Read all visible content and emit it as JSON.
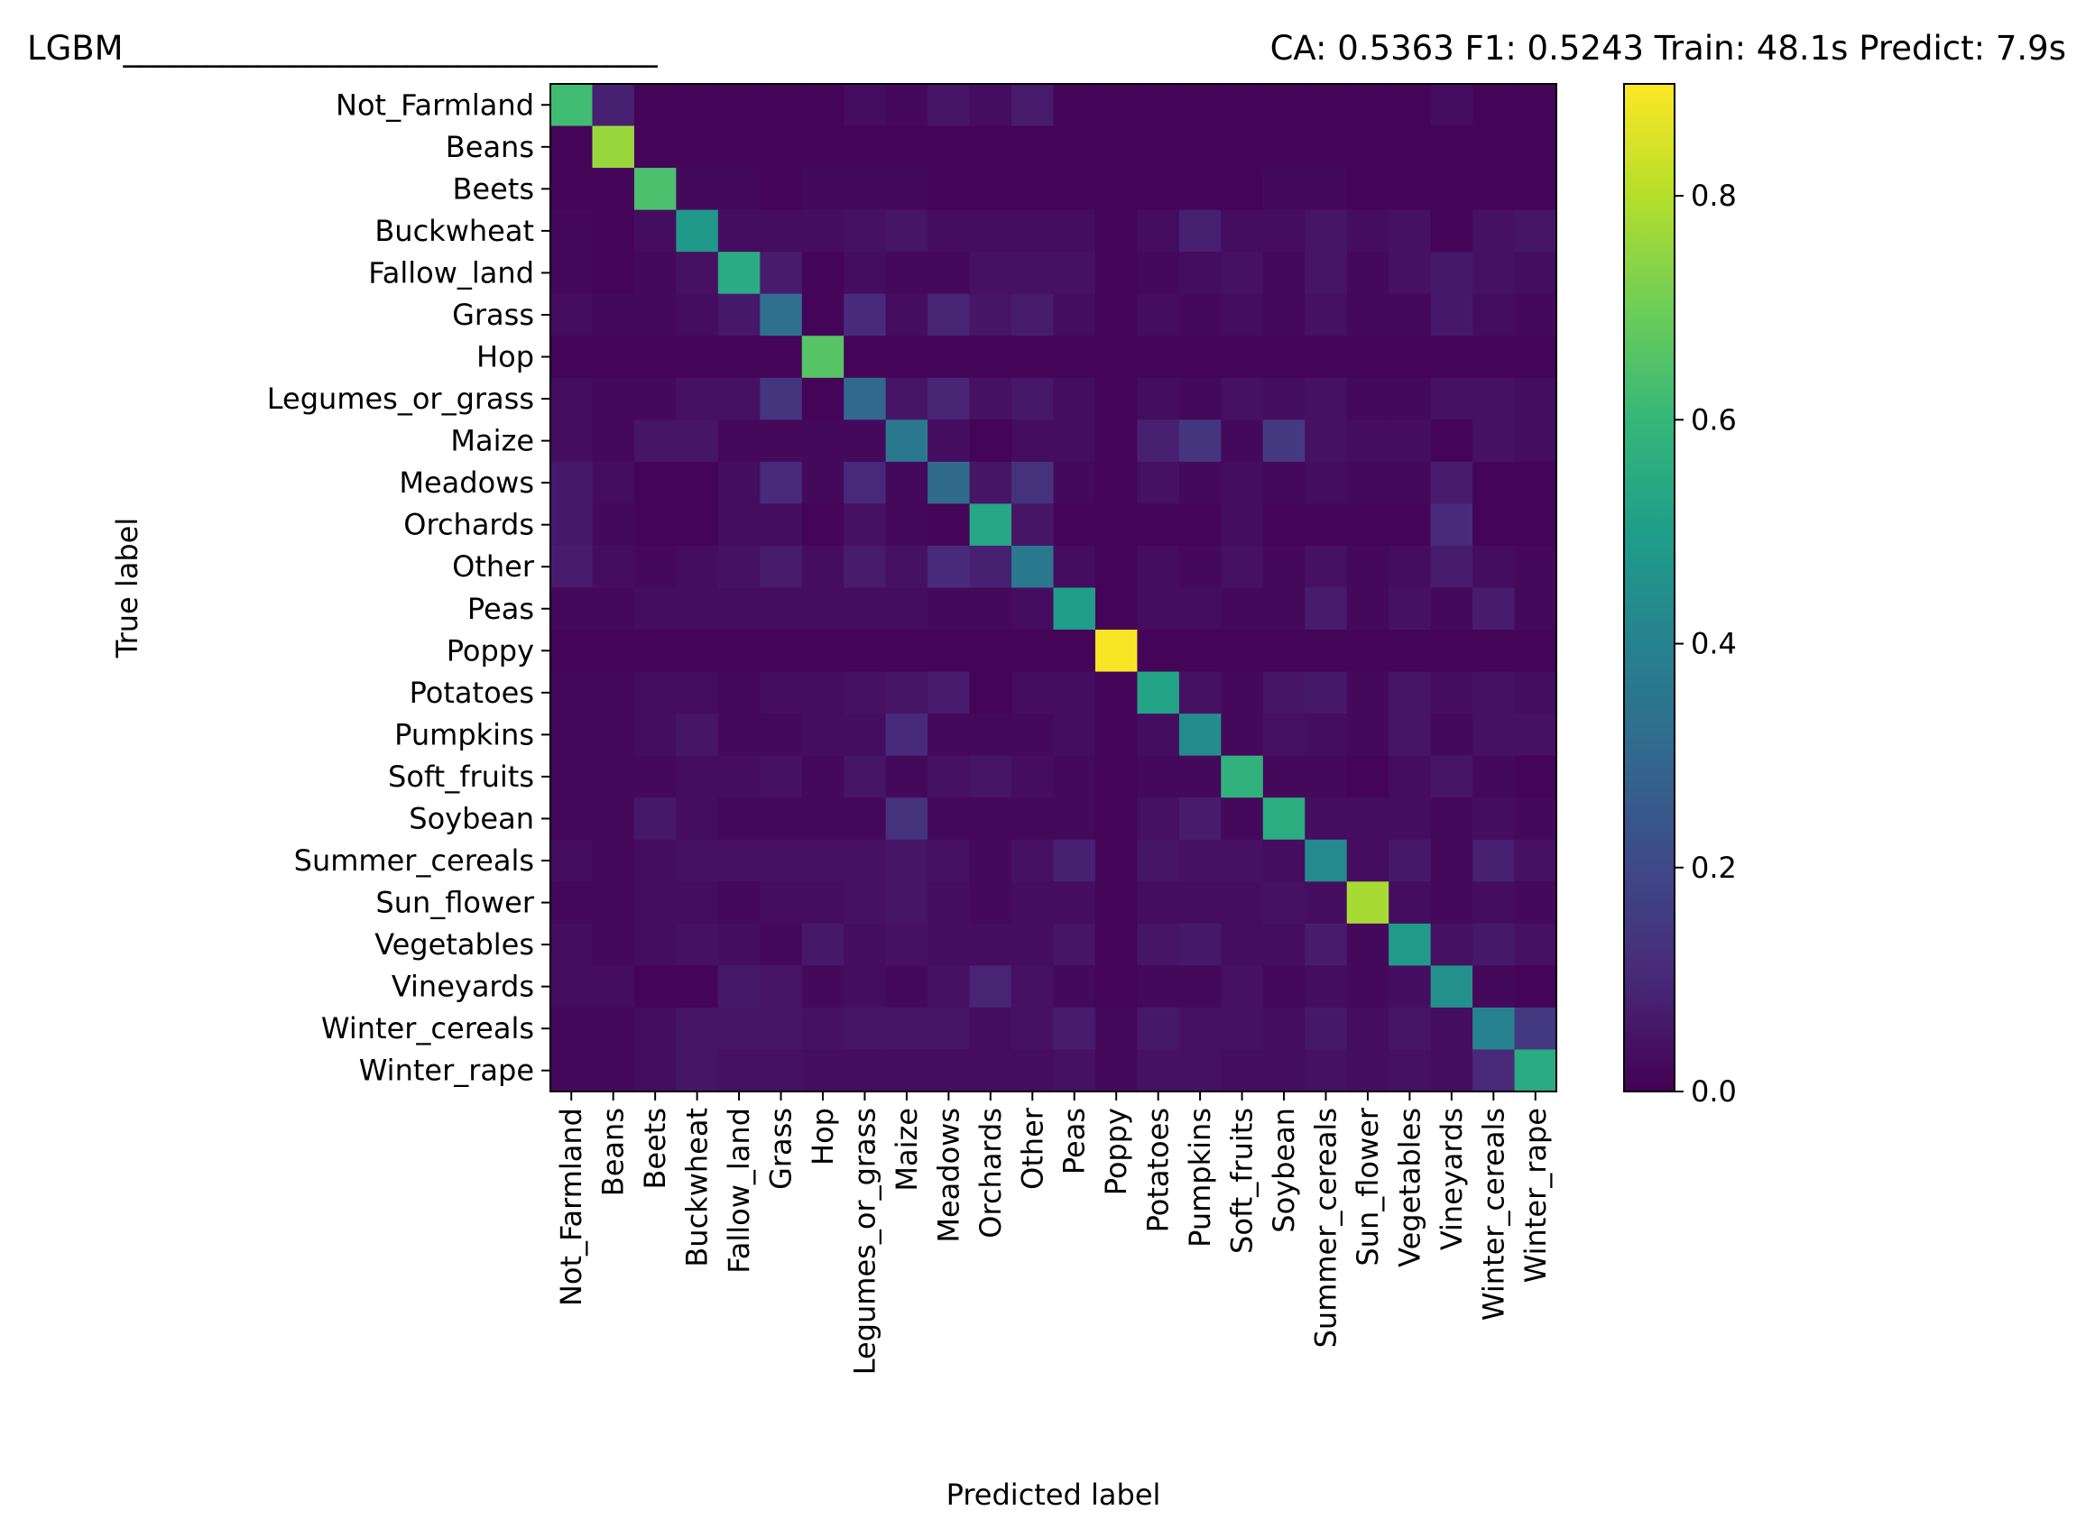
{
  "chart_data": {
    "type": "heatmap",
    "title_left": "LGBM________________________________",
    "title_right": "CA: 0.5363 F1: 0.5243 Train: 48.1s Predict: 7.9s",
    "xlabel": "Predicted label",
    "ylabel": "True label",
    "colormap": "viridis",
    "vmin": 0.0,
    "vmax": 0.9,
    "colorbar_ticks": [
      "0.0",
      "0.2",
      "0.4",
      "0.6",
      "0.8"
    ],
    "colorbar_tick_values": [
      0.0,
      0.2,
      0.4,
      0.6,
      0.8
    ],
    "labels": [
      "Not_Farmland",
      "Beans",
      "Beets",
      "Buckwheat",
      "Fallow_land",
      "Grass",
      "Hop",
      "Legumes_or_grass",
      "Maize",
      "Meadows",
      "Orchards",
      "Other",
      "Peas",
      "Poppy",
      "Potatoes",
      "Pumpkins",
      "Soft_fruits",
      "Soybean",
      "Summer_cereals",
      "Sun_flower",
      "Vegetables",
      "Vineyards",
      "Winter_cereals",
      "Winter_rape"
    ],
    "matrix": [
      [
        0.62,
        0.08,
        0.01,
        0.01,
        0.01,
        0.01,
        0.01,
        0.03,
        0.02,
        0.05,
        0.03,
        0.07,
        0.01,
        0.01,
        0.01,
        0.01,
        0.01,
        0.01,
        0.01,
        0.01,
        0.01,
        0.03,
        0.01,
        0.01
      ],
      [
        0.01,
        0.76,
        0.01,
        0.01,
        0.01,
        0.01,
        0.01,
        0.01,
        0.01,
        0.01,
        0.01,
        0.01,
        0.01,
        0.01,
        0.01,
        0.01,
        0.01,
        0.01,
        0.01,
        0.01,
        0.01,
        0.01,
        0.01,
        0.01
      ],
      [
        0.01,
        0.01,
        0.64,
        0.02,
        0.02,
        0.01,
        0.02,
        0.02,
        0.02,
        0.01,
        0.01,
        0.01,
        0.01,
        0.01,
        0.01,
        0.01,
        0.01,
        0.02,
        0.02,
        0.01,
        0.01,
        0.01,
        0.01,
        0.01
      ],
      [
        0.02,
        0.01,
        0.03,
        0.48,
        0.03,
        0.03,
        0.03,
        0.04,
        0.05,
        0.03,
        0.03,
        0.03,
        0.03,
        0.01,
        0.03,
        0.08,
        0.03,
        0.03,
        0.05,
        0.03,
        0.04,
        0.01,
        0.04,
        0.05
      ],
      [
        0.02,
        0.01,
        0.02,
        0.04,
        0.55,
        0.07,
        0.01,
        0.03,
        0.02,
        0.02,
        0.04,
        0.04,
        0.04,
        0.01,
        0.02,
        0.03,
        0.04,
        0.02,
        0.05,
        0.02,
        0.04,
        0.06,
        0.04,
        0.03
      ],
      [
        0.03,
        0.02,
        0.02,
        0.03,
        0.06,
        0.33,
        0.01,
        0.11,
        0.03,
        0.09,
        0.05,
        0.07,
        0.03,
        0.01,
        0.03,
        0.02,
        0.03,
        0.02,
        0.04,
        0.02,
        0.02,
        0.06,
        0.03,
        0.02
      ],
      [
        0.01,
        0.01,
        0.01,
        0.01,
        0.01,
        0.01,
        0.66,
        0.01,
        0.01,
        0.01,
        0.01,
        0.01,
        0.01,
        0.01,
        0.01,
        0.01,
        0.01,
        0.01,
        0.01,
        0.01,
        0.01,
        0.01,
        0.01,
        0.01
      ],
      [
        0.03,
        0.02,
        0.02,
        0.04,
        0.04,
        0.14,
        0.01,
        0.3,
        0.05,
        0.09,
        0.04,
        0.06,
        0.03,
        0.01,
        0.03,
        0.02,
        0.04,
        0.03,
        0.04,
        0.02,
        0.02,
        0.04,
        0.04,
        0.03
      ],
      [
        0.03,
        0.02,
        0.05,
        0.05,
        0.02,
        0.02,
        0.02,
        0.02,
        0.36,
        0.03,
        0.01,
        0.03,
        0.03,
        0.01,
        0.08,
        0.14,
        0.02,
        0.15,
        0.04,
        0.03,
        0.03,
        0.01,
        0.04,
        0.03
      ],
      [
        0.06,
        0.03,
        0.01,
        0.01,
        0.03,
        0.11,
        0.02,
        0.1,
        0.02,
        0.31,
        0.05,
        0.13,
        0.02,
        0.01,
        0.04,
        0.02,
        0.03,
        0.02,
        0.03,
        0.02,
        0.02,
        0.07,
        0.01,
        0.01
      ],
      [
        0.06,
        0.02,
        0.01,
        0.01,
        0.03,
        0.03,
        0.01,
        0.04,
        0.02,
        0.01,
        0.53,
        0.05,
        0.01,
        0.01,
        0.01,
        0.01,
        0.03,
        0.01,
        0.01,
        0.01,
        0.01,
        0.11,
        0.01,
        0.01
      ],
      [
        0.07,
        0.03,
        0.02,
        0.03,
        0.04,
        0.07,
        0.03,
        0.07,
        0.04,
        0.11,
        0.08,
        0.36,
        0.03,
        0.01,
        0.03,
        0.02,
        0.04,
        0.02,
        0.04,
        0.02,
        0.03,
        0.07,
        0.03,
        0.02
      ],
      [
        0.02,
        0.02,
        0.03,
        0.03,
        0.03,
        0.03,
        0.03,
        0.03,
        0.03,
        0.02,
        0.02,
        0.03,
        0.5,
        0.01,
        0.03,
        0.03,
        0.02,
        0.02,
        0.07,
        0.02,
        0.04,
        0.02,
        0.07,
        0.02
      ],
      [
        0.01,
        0.01,
        0.01,
        0.01,
        0.01,
        0.01,
        0.01,
        0.01,
        0.01,
        0.01,
        0.01,
        0.01,
        0.01,
        0.89,
        0.01,
        0.01,
        0.01,
        0.01,
        0.01,
        0.01,
        0.01,
        0.01,
        0.01,
        0.01
      ],
      [
        0.02,
        0.02,
        0.03,
        0.03,
        0.02,
        0.03,
        0.03,
        0.04,
        0.05,
        0.07,
        0.01,
        0.03,
        0.03,
        0.01,
        0.52,
        0.04,
        0.02,
        0.05,
        0.06,
        0.02,
        0.05,
        0.03,
        0.04,
        0.03
      ],
      [
        0.02,
        0.02,
        0.03,
        0.05,
        0.02,
        0.02,
        0.03,
        0.03,
        0.11,
        0.02,
        0.02,
        0.02,
        0.03,
        0.01,
        0.03,
        0.44,
        0.02,
        0.04,
        0.03,
        0.02,
        0.05,
        0.02,
        0.04,
        0.04
      ],
      [
        0.02,
        0.02,
        0.02,
        0.03,
        0.03,
        0.04,
        0.02,
        0.05,
        0.02,
        0.04,
        0.05,
        0.03,
        0.02,
        0.01,
        0.02,
        0.02,
        0.58,
        0.02,
        0.02,
        0.01,
        0.03,
        0.05,
        0.02,
        0.01
      ],
      [
        0.02,
        0.02,
        0.06,
        0.03,
        0.02,
        0.02,
        0.02,
        0.02,
        0.13,
        0.02,
        0.02,
        0.02,
        0.02,
        0.01,
        0.04,
        0.07,
        0.02,
        0.56,
        0.03,
        0.03,
        0.03,
        0.02,
        0.03,
        0.02
      ],
      [
        0.03,
        0.02,
        0.03,
        0.04,
        0.04,
        0.04,
        0.04,
        0.04,
        0.05,
        0.04,
        0.02,
        0.04,
        0.08,
        0.01,
        0.05,
        0.04,
        0.04,
        0.03,
        0.43,
        0.03,
        0.06,
        0.02,
        0.08,
        0.04
      ],
      [
        0.02,
        0.02,
        0.03,
        0.03,
        0.02,
        0.03,
        0.03,
        0.04,
        0.05,
        0.03,
        0.02,
        0.03,
        0.03,
        0.01,
        0.03,
        0.03,
        0.03,
        0.04,
        0.03,
        0.78,
        0.03,
        0.02,
        0.03,
        0.02
      ],
      [
        0.03,
        0.02,
        0.03,
        0.04,
        0.03,
        0.02,
        0.06,
        0.03,
        0.04,
        0.03,
        0.03,
        0.03,
        0.05,
        0.01,
        0.05,
        0.06,
        0.03,
        0.03,
        0.07,
        0.02,
        0.49,
        0.04,
        0.06,
        0.04
      ],
      [
        0.03,
        0.03,
        0.01,
        0.01,
        0.06,
        0.05,
        0.02,
        0.03,
        0.02,
        0.04,
        0.09,
        0.04,
        0.02,
        0.01,
        0.02,
        0.02,
        0.04,
        0.02,
        0.03,
        0.02,
        0.03,
        0.45,
        0.02,
        0.01
      ],
      [
        0.02,
        0.02,
        0.03,
        0.05,
        0.05,
        0.05,
        0.04,
        0.05,
        0.05,
        0.05,
        0.03,
        0.04,
        0.07,
        0.02,
        0.06,
        0.04,
        0.04,
        0.03,
        0.06,
        0.03,
        0.05,
        0.03,
        0.4,
        0.15
      ],
      [
        0.02,
        0.02,
        0.03,
        0.05,
        0.04,
        0.04,
        0.03,
        0.03,
        0.03,
        0.03,
        0.03,
        0.03,
        0.04,
        0.02,
        0.04,
        0.04,
        0.03,
        0.03,
        0.04,
        0.03,
        0.04,
        0.03,
        0.1,
        0.55
      ]
    ]
  }
}
